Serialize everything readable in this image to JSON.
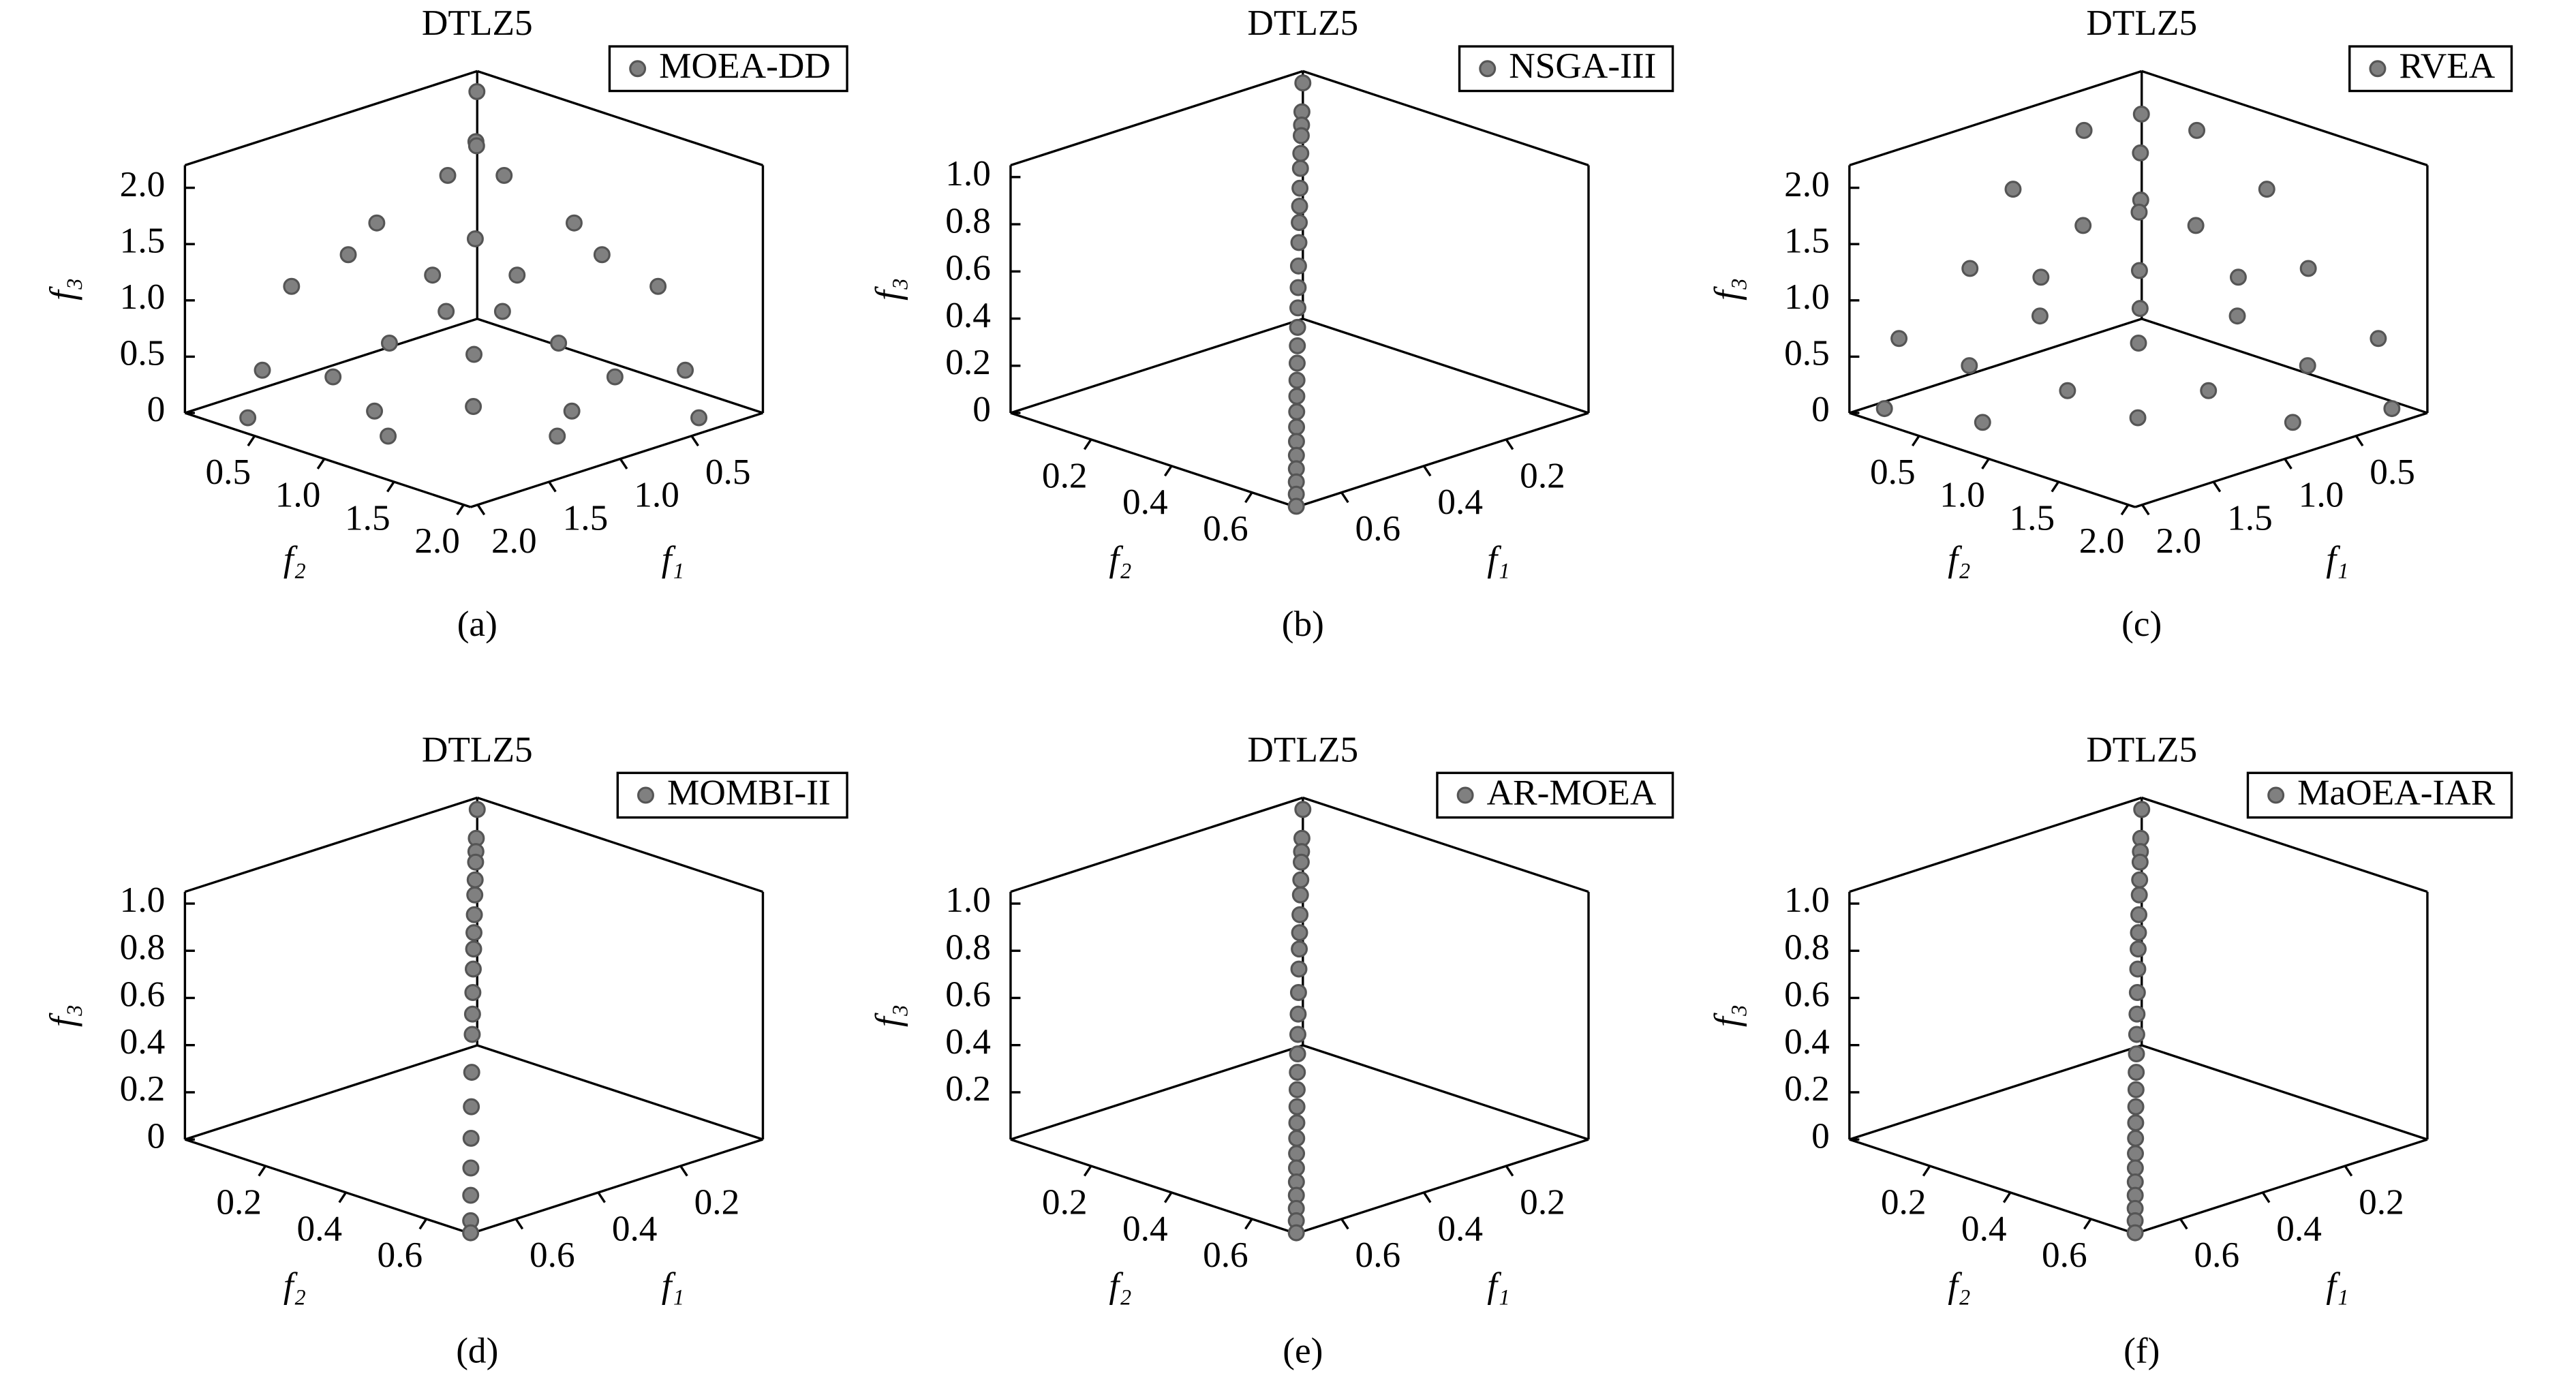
{
  "chart_data": [
    {
      "type": "scatter3d",
      "title": "DTLZ5",
      "caption": "(a)",
      "xlabel": "f₁",
      "ylabel": "f₂",
      "zlabel": "f₃",
      "xlim": [
        0,
        2.05
      ],
      "ylim": [
        0,
        2.05
      ],
      "zlim": [
        0,
        2.2
      ],
      "xticks": [
        0.5,
        {
          "value": 1,
          "label": "1.0"
        },
        1.5,
        {
          "value": 2,
          "label": "2.0"
        }
      ],
      "yticks": [
        0.5,
        {
          "value": 1,
          "label": "1.0"
        },
        1.5,
        {
          "value": 2,
          "label": "2.0"
        }
      ],
      "zticks": [
        0,
        0.5,
        {
          "value": 1,
          "label": "1.0"
        },
        1.5,
        {
          "value": 2,
          "label": "2.0"
        }
      ],
      "series": [
        {
          "name": "MOEA-DD",
          "color": "#808080",
          "x": [
            0.1,
            0.3,
            0.5,
            0.2,
            0.9,
            0.6,
            0.1,
            1.4,
            0.8,
            1.0,
            0.3,
            1.8,
            0.5,
            1.5,
            1.2,
            0.9,
            1.6,
            0.4,
            0.2,
            0.7,
            1.3,
            1.0,
            0.2,
            1.1,
            0.4,
            2.0,
            0.6,
            0.9,
            1.7,
            1.1
          ],
          "y": [
            0.1,
            0.5,
            0.3,
            0.9,
            0.2,
            0.6,
            1.4,
            0.1,
            1.0,
            0.8,
            1.8,
            0.3,
            1.5,
            0.5,
            1.2,
            1.6,
            0.9,
            0.4,
            0.2,
            1.3,
            0.7,
            1.0,
            1.1,
            0.2,
            2.0,
            0.4,
            0.9,
            0.6,
            1.1,
            1.7
          ],
          "z": [
            2.1,
            1.6,
            1.6,
            1.3,
            1.3,
            1.2,
            0.9,
            0.9,
            0.8,
            0.8,
            0.4,
            0.4,
            0.3,
            0.3,
            0.2,
            0.2,
            0.2,
            1.9,
            1.7,
            0.6,
            0.6,
            0.5,
            1.1,
            1.1,
            0.1,
            0.1,
            1.0,
            1.0,
            0.1,
            0.1
          ]
        }
      ]
    },
    {
      "type": "scatter3d",
      "title": "DTLZ5",
      "caption": "(b)",
      "xlabel": "f₁",
      "ylabel": "f₂",
      "zlabel": "f₃",
      "xlim": [
        0,
        0.71
      ],
      "ylim": [
        0,
        0.71
      ],
      "zlim": [
        0,
        1.05
      ],
      "xticks": [
        0.2,
        0.4,
        0.6
      ],
      "yticks": [
        0.2,
        0.4,
        0.6
      ],
      "zticks": [
        0,
        0.2,
        0.4,
        0.6,
        0.8,
        {
          "value": 1,
          "label": "1.0"
        }
      ],
      "series": [
        {
          "name": "NSGA-III",
          "color": "#808080",
          "x": [
            0,
            0.1,
            0.141,
            0.172,
            0.221,
            0.26,
            0.308,
            0.349,
            0.384,
            0.424,
            0.468,
            0.505,
            0.537,
            0.566,
            0.591,
            0.612,
            0.632,
            0.648,
            0.662,
            0.675,
            0.685,
            0.693,
            0.699,
            0.704,
            0.706,
            0.707
          ],
          "y": [
            0,
            0.1,
            0.141,
            0.172,
            0.221,
            0.26,
            0.308,
            0.349,
            0.384,
            0.424,
            0.468,
            0.505,
            0.537,
            0.566,
            0.591,
            0.612,
            0.632,
            0.648,
            0.662,
            0.675,
            0.685,
            0.693,
            0.699,
            0.704,
            0.706,
            0.707
          ],
          "z": [
            1,
            0.99,
            0.98,
            0.97,
            0.95,
            0.93,
            0.9,
            0.87,
            0.84,
            0.8,
            0.75,
            0.7,
            0.65,
            0.6,
            0.55,
            0.5,
            0.45,
            0.4,
            0.35,
            0.3,
            0.25,
            0.2,
            0.15,
            0.1,
            0.05,
            0
          ]
        }
      ]
    },
    {
      "type": "scatter3d",
      "title": "DTLZ5",
      "caption": "(c)",
      "xlabel": "f₁",
      "ylabel": "f₂",
      "zlabel": "f₃",
      "xlim": [
        0,
        2.05
      ],
      "ylim": [
        0,
        2.05
      ],
      "zlim": [
        0,
        2.2
      ],
      "xticks": [
        0.5,
        {
          "value": 1,
          "label": "1.0"
        },
        1.5,
        {
          "value": 2,
          "label": "2.0"
        }
      ],
      "yticks": [
        0.5,
        {
          "value": 1,
          "label": "1.0"
        },
        1.5,
        {
          "value": 2,
          "label": "2.0"
        }
      ],
      "zticks": [
        0,
        0.5,
        {
          "value": 1,
          "label": "1.0"
        },
        1.5,
        {
          "value": 2,
          "label": "2.0"
        }
      ],
      "series": [
        {
          "name": "RVEA",
          "color": "#808080",
          "x": [
            0.2,
            0.6,
            0.4,
            0.1,
            1.0,
            0.5,
            0.9,
            0.3,
            0.2,
            1.4,
            0.7,
            0.6,
            1.3,
            0.1,
            1.8,
            1.0,
            0.4,
            1.6,
            0.9,
            1.4,
            0.2,
            2.0,
            0.7,
            1.8,
            1.2,
            0.5,
            0.3,
            1.0,
            0.8,
            0.1
          ],
          "y": [
            0.6,
            0.2,
            0.4,
            1.0,
            0.1,
            0.9,
            0.5,
            0.3,
            1.4,
            0.2,
            0.7,
            1.3,
            0.6,
            1.8,
            0.1,
            1.0,
            1.6,
            0.4,
            1.4,
            0.9,
            2.0,
            0.2,
            1.8,
            0.7,
            1.2,
            0.5,
            1.0,
            0.3,
            0.8,
            0.1
          ],
          "z": [
            2.0,
            2.0,
            1.8,
            1.6,
            1.6,
            1.4,
            1.4,
            1.3,
            1.1,
            1.1,
            1.0,
            0.8,
            0.8,
            0.6,
            0.6,
            0.6,
            0.4,
            0.4,
            0.3,
            0.3,
            0.1,
            0.1,
            0.1,
            0.1,
            0.1,
            0.5,
            0.9,
            0.9,
            1.6,
            1.9
          ]
        }
      ]
    },
    {
      "type": "scatter3d",
      "title": "DTLZ5",
      "caption": "(d)",
      "xlabel": "f₁",
      "ylabel": "f₂",
      "zlabel": "f₃",
      "xlim": [
        0,
        0.71
      ],
      "ylim": [
        0,
        0.71
      ],
      "zlim": [
        0,
        1.05
      ],
      "xticks": [
        0.2,
        0.4,
        0.6
      ],
      "yticks": [
        0.2,
        0.4,
        0.6
      ],
      "zticks": [
        0,
        0.2,
        0.4,
        0.6,
        0.8,
        {
          "value": 1,
          "label": "1.0"
        }
      ],
      "series": [
        {
          "name": "MOMBI-II",
          "color": "#808080",
          "x": [
            0,
            0.1,
            0.141,
            0.172,
            0.221,
            0.26,
            0.308,
            0.349,
            0.384,
            0.424,
            0.468,
            0.505,
            0.537,
            0.591,
            0.632,
            0.662,
            0.685,
            0.699,
            0.706,
            0.707
          ],
          "y": [
            0,
            0.1,
            0.141,
            0.172,
            0.221,
            0.26,
            0.308,
            0.349,
            0.384,
            0.424,
            0.468,
            0.505,
            0.537,
            0.591,
            0.632,
            0.662,
            0.685,
            0.699,
            0.706,
            0.707
          ],
          "z": [
            1,
            0.99,
            0.98,
            0.97,
            0.95,
            0.93,
            0.9,
            0.87,
            0.84,
            0.8,
            0.75,
            0.7,
            0.65,
            0.55,
            0.45,
            0.35,
            0.25,
            0.15,
            0.05,
            0
          ]
        }
      ]
    },
    {
      "type": "scatter3d",
      "title": "DTLZ5",
      "caption": "(e)",
      "xlabel": "f₁",
      "ylabel": "f₂",
      "zlabel": "f₃",
      "xlim": [
        0,
        0.71
      ],
      "ylim": [
        0,
        0.71
      ],
      "zlim": [
        0,
        1.05
      ],
      "xticks": [
        0.2,
        0.4,
        0.6
      ],
      "yticks": [
        0.2,
        0.4,
        0.6
      ],
      "zticks": [
        0.2,
        0.4,
        0.6,
        0.8,
        {
          "value": 1,
          "label": "1.0"
        }
      ],
      "series": [
        {
          "name": "AR-MOEA",
          "color": "#808080",
          "x": [
            0,
            0.1,
            0.141,
            0.172,
            0.221,
            0.26,
            0.308,
            0.349,
            0.384,
            0.424,
            0.468,
            0.505,
            0.537,
            0.566,
            0.591,
            0.612,
            0.632,
            0.648,
            0.662,
            0.675,
            0.685,
            0.693,
            0.699,
            0.704,
            0.706,
            0.707
          ],
          "y": [
            0,
            0.1,
            0.141,
            0.172,
            0.221,
            0.26,
            0.308,
            0.349,
            0.384,
            0.424,
            0.468,
            0.505,
            0.537,
            0.566,
            0.591,
            0.612,
            0.632,
            0.648,
            0.662,
            0.675,
            0.685,
            0.693,
            0.699,
            0.704,
            0.706,
            0.707
          ],
          "z": [
            1,
            0.99,
            0.98,
            0.97,
            0.95,
            0.93,
            0.9,
            0.87,
            0.84,
            0.8,
            0.75,
            0.7,
            0.65,
            0.6,
            0.55,
            0.5,
            0.45,
            0.4,
            0.35,
            0.3,
            0.25,
            0.2,
            0.15,
            0.1,
            0.05,
            0
          ]
        }
      ]
    },
    {
      "type": "scatter3d",
      "title": "DTLZ5",
      "caption": "(f)",
      "xlabel": "f₁",
      "ylabel": "f₂",
      "zlabel": "f₃",
      "xlim": [
        0,
        0.71
      ],
      "ylim": [
        0,
        0.71
      ],
      "zlim": [
        0,
        1.05
      ],
      "xticks": [
        0.2,
        0.4,
        0.6
      ],
      "yticks": [
        0.2,
        0.4,
        0.6
      ],
      "zticks": [
        0,
        0.2,
        0.4,
        0.6,
        0.8,
        {
          "value": 1,
          "label": "1.0"
        }
      ],
      "series": [
        {
          "name": "MaOEA-IAR",
          "color": "#808080",
          "x": [
            0,
            0.1,
            0.141,
            0.172,
            0.221,
            0.26,
            0.308,
            0.349,
            0.384,
            0.424,
            0.468,
            0.505,
            0.537,
            0.566,
            0.591,
            0.612,
            0.632,
            0.648,
            0.662,
            0.675,
            0.685,
            0.693,
            0.699,
            0.704,
            0.706,
            0.707
          ],
          "y": [
            0,
            0.1,
            0.141,
            0.172,
            0.221,
            0.26,
            0.308,
            0.349,
            0.384,
            0.424,
            0.468,
            0.505,
            0.537,
            0.566,
            0.591,
            0.612,
            0.632,
            0.648,
            0.662,
            0.675,
            0.685,
            0.693,
            0.699,
            0.704,
            0.706,
            0.707
          ],
          "z": [
            1,
            0.99,
            0.98,
            0.97,
            0.95,
            0.93,
            0.9,
            0.87,
            0.84,
            0.8,
            0.75,
            0.7,
            0.65,
            0.6,
            0.55,
            0.5,
            0.45,
            0.4,
            0.35,
            0.3,
            0.25,
            0.2,
            0.15,
            0.1,
            0.05,
            0
          ]
        }
      ]
    }
  ]
}
